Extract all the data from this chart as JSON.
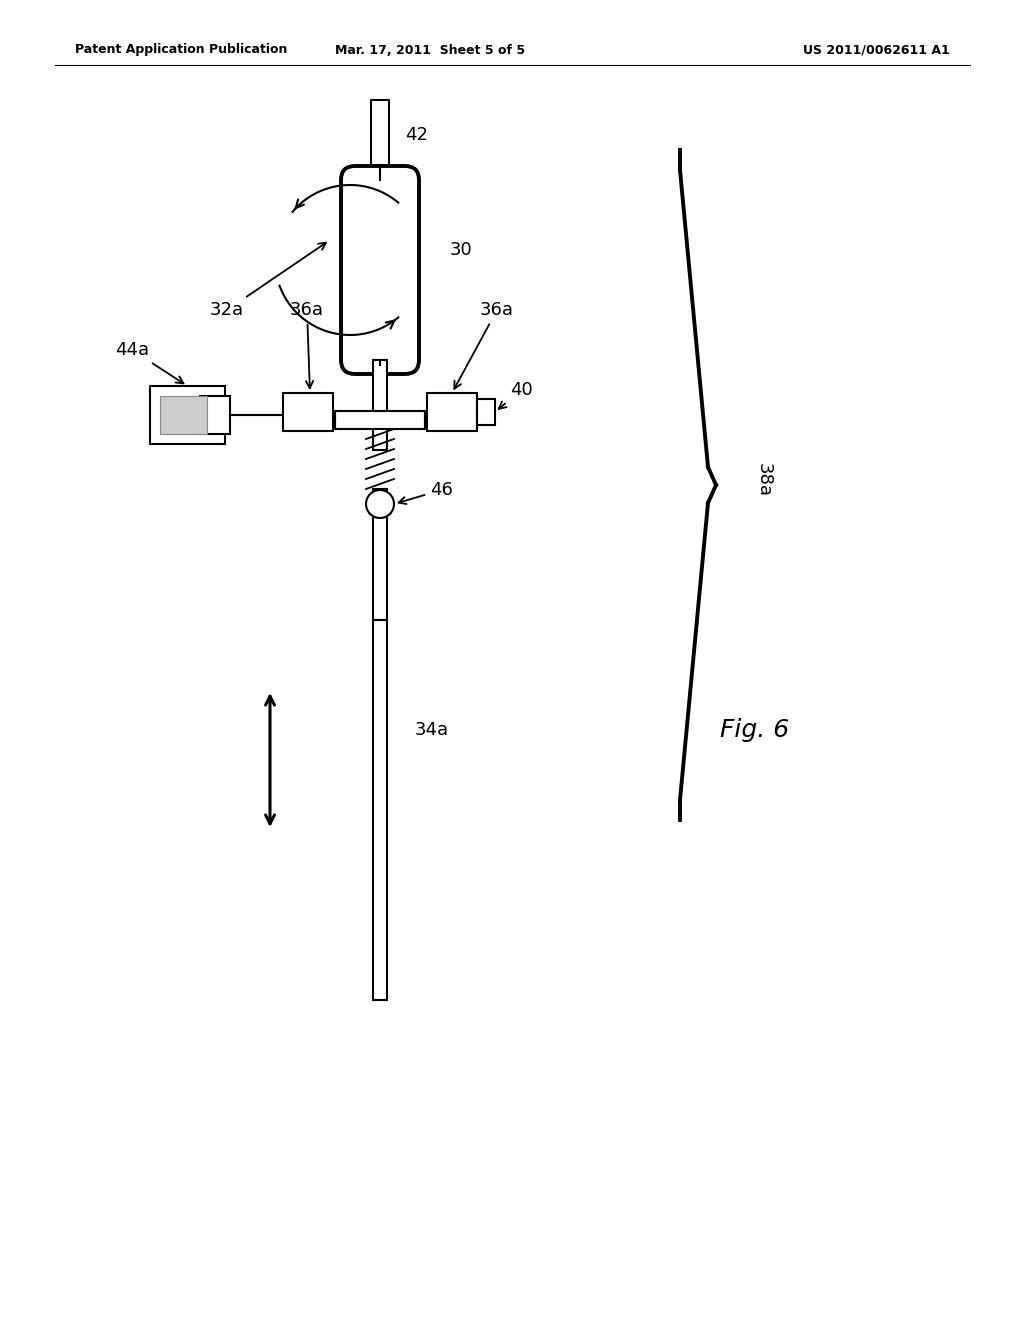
{
  "bg_color": "#ffffff",
  "header_left": "Patent Application Publication",
  "header_mid": "Mar. 17, 2011  Sheet 5 of 5",
  "header_right": "US 2011/0062611 A1",
  "fig_label": "Fig. 6"
}
